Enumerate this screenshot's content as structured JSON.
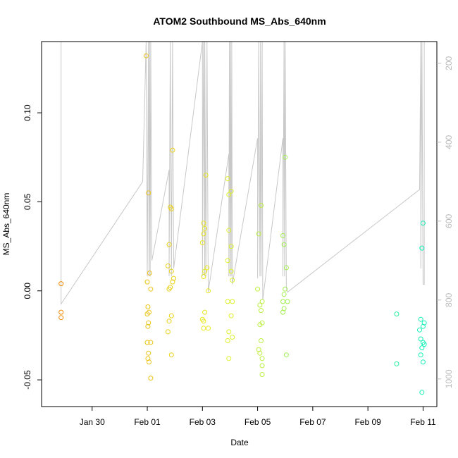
{
  "chart_data": {
    "type": "scatter",
    "title": "ATOM2 Southbound MS_Abs_640nm",
    "xlabel": "Date",
    "ylabel": "MS_Abs_640nm",
    "x_range": [
      "2017-01-28T04:00",
      "2017-02-11T12:00"
    ],
    "ylim": [
      -0.065,
      0.14
    ],
    "y_ticks": [
      -0.05,
      0.0,
      0.05,
      0.1
    ],
    "y_tick_labels": [
      "-0.05",
      "0.00",
      "0.05",
      "0.10"
    ],
    "x_ticks": [
      "2017-01-30",
      "2017-02-01",
      "2017-02-03",
      "2017-02-05",
      "2017-02-07",
      "2017-02-09",
      "2017-02-11"
    ],
    "x_tick_labels": [
      "Jan 30",
      "Feb 01",
      "Feb 03",
      "Feb 05",
      "Feb 07",
      "Feb 09",
      "Feb 11"
    ],
    "secondary_axis": {
      "side": "right",
      "color": "#bbbbbb",
      "inverted": true,
      "range": [
        145,
        1070
      ],
      "ticks": [
        200,
        400,
        600,
        800,
        1000
      ],
      "tick_labels": [
        "200",
        "400",
        "600",
        "800",
        "1000"
      ]
    },
    "points": [
      {
        "t": "2017-01-28T21:00",
        "y": 0.004
      },
      {
        "t": "2017-01-28T21:00",
        "y": -0.012
      },
      {
        "t": "2017-01-28T21:00",
        "y": -0.015
      },
      {
        "t": "2017-01-31T23:00",
        "y": 0.132
      },
      {
        "t": "2017-02-01T01:00",
        "y": 0.055
      },
      {
        "t": "2017-02-01T02:00",
        "y": 0.01
      },
      {
        "t": "2017-02-01T00:00",
        "y": 0.005
      },
      {
        "t": "2017-02-01T03:00",
        "y": 0.001
      },
      {
        "t": "2017-02-01T00:30",
        "y": -0.009
      },
      {
        "t": "2017-02-01T01:30",
        "y": -0.012
      },
      {
        "t": "2017-02-01T00:00",
        "y": -0.013
      },
      {
        "t": "2017-02-01T01:00",
        "y": -0.018
      },
      {
        "t": "2017-02-01T00:30",
        "y": -0.02
      },
      {
        "t": "2017-02-01T00:00",
        "y": -0.029
      },
      {
        "t": "2017-02-01T03:00",
        "y": -0.029
      },
      {
        "t": "2017-02-01T01:00",
        "y": -0.035
      },
      {
        "t": "2017-02-01T00:30",
        "y": -0.038
      },
      {
        "t": "2017-02-01T01:30",
        "y": -0.04
      },
      {
        "t": "2017-02-01T03:00",
        "y": -0.049
      },
      {
        "t": "2017-02-01T22:00",
        "y": 0.079
      },
      {
        "t": "2017-02-01T20:00",
        "y": 0.047
      },
      {
        "t": "2017-02-01T21:00",
        "y": 0.046
      },
      {
        "t": "2017-02-01T19:00",
        "y": 0.026
      },
      {
        "t": "2017-02-01T18:00",
        "y": 0.014
      },
      {
        "t": "2017-02-01T21:00",
        "y": 0.011
      },
      {
        "t": "2017-02-01T23:00",
        "y": 0.007
      },
      {
        "t": "2017-02-01T22:00",
        "y": 0.005
      },
      {
        "t": "2017-02-01T20:00",
        "y": 0.002
      },
      {
        "t": "2017-02-01T19:00",
        "y": 0.001
      },
      {
        "t": "2017-02-01T21:00",
        "y": -0.014
      },
      {
        "t": "2017-02-01T19:00",
        "y": -0.017
      },
      {
        "t": "2017-02-01T18:00",
        "y": -0.023
      },
      {
        "t": "2017-02-01T21:00",
        "y": -0.036
      },
      {
        "t": "2017-02-03T03:00",
        "y": 0.065
      },
      {
        "t": "2017-02-03T01:00",
        "y": 0.038
      },
      {
        "t": "2017-02-03T02:00",
        "y": 0.035
      },
      {
        "t": "2017-02-03T01:00",
        "y": 0.032
      },
      {
        "t": "2017-02-03T00:00",
        "y": 0.027
      },
      {
        "t": "2017-02-03T04:00",
        "y": 0.013
      },
      {
        "t": "2017-02-03T02:00",
        "y": 0.011
      },
      {
        "t": "2017-02-03T01:00",
        "y": 0.008
      },
      {
        "t": "2017-02-03T05:00",
        "y": 0.0
      },
      {
        "t": "2017-02-03T02:00",
        "y": -0.012
      },
      {
        "t": "2017-02-03T00:00",
        "y": -0.016
      },
      {
        "t": "2017-02-03T01:00",
        "y": -0.017
      },
      {
        "t": "2017-02-03T01:00",
        "y": -0.021
      },
      {
        "t": "2017-02-03T05:00",
        "y": -0.021
      },
      {
        "t": "2017-02-03T22:00",
        "y": 0.063
      },
      {
        "t": "2017-02-04T01:00",
        "y": 0.056
      },
      {
        "t": "2017-02-03T23:00",
        "y": 0.054
      },
      {
        "t": "2017-02-03T23:00",
        "y": 0.034
      },
      {
        "t": "2017-02-04T01:00",
        "y": 0.025
      },
      {
        "t": "2017-02-03T22:00",
        "y": 0.017
      },
      {
        "t": "2017-02-04T01:00",
        "y": 0.011
      },
      {
        "t": "2017-02-04T02:00",
        "y": 0.006
      },
      {
        "t": "2017-02-03T22:00",
        "y": -0.006
      },
      {
        "t": "2017-02-04T02:00",
        "y": -0.006
      },
      {
        "t": "2017-02-04T01:00",
        "y": -0.014
      },
      {
        "t": "2017-02-03T23:00",
        "y": -0.023
      },
      {
        "t": "2017-02-03T23:00",
        "y": -0.038
      },
      {
        "t": "2017-02-04T02:00",
        "y": -0.026
      },
      {
        "t": "2017-02-03T22:00",
        "y": -0.028
      },
      {
        "t": "2017-02-05T03:00",
        "y": 0.048
      },
      {
        "t": "2017-02-05T01:00",
        "y": 0.032
      },
      {
        "t": "2017-02-05T00:00",
        "y": 0.001
      },
      {
        "t": "2017-02-05T02:00",
        "y": -0.008
      },
      {
        "t": "2017-02-05T04:00",
        "y": -0.006
      },
      {
        "t": "2017-02-05T03:00",
        "y": -0.011
      },
      {
        "t": "2017-02-05T04:00",
        "y": -0.018
      },
      {
        "t": "2017-02-05T02:00",
        "y": -0.019
      },
      {
        "t": "2017-02-05T03:00",
        "y": -0.028
      },
      {
        "t": "2017-02-05T01:00",
        "y": -0.033
      },
      {
        "t": "2017-02-05T04:00",
        "y": -0.038
      },
      {
        "t": "2017-02-05T04:00",
        "y": -0.042
      },
      {
        "t": "2017-02-05T02:00",
        "y": -0.035
      },
      {
        "t": "2017-02-05T04:00",
        "y": -0.047
      },
      {
        "t": "2017-02-06T00:00",
        "y": 0.075
      },
      {
        "t": "2017-02-05T22:00",
        "y": 0.031
      },
      {
        "t": "2017-02-05T23:00",
        "y": 0.026
      },
      {
        "t": "2017-02-06T01:00",
        "y": 0.013
      },
      {
        "t": "2017-02-06T00:00",
        "y": 0.001
      },
      {
        "t": "2017-02-05T23:00",
        "y": -0.002
      },
      {
        "t": "2017-02-05T22:00",
        "y": -0.006
      },
      {
        "t": "2017-02-06T02:00",
        "y": -0.006
      },
      {
        "t": "2017-02-05T23:00",
        "y": -0.01
      },
      {
        "t": "2017-02-05T22:00",
        "y": -0.012
      },
      {
        "t": "2017-02-06T01:00",
        "y": -0.036
      },
      {
        "t": "2017-02-10T01:00",
        "y": -0.013
      },
      {
        "t": "2017-02-10T01:00",
        "y": -0.041
      },
      {
        "t": "2017-02-11T00:00",
        "y": 0.038
      },
      {
        "t": "2017-02-10T23:00",
        "y": 0.024
      },
      {
        "t": "2017-02-10T22:00",
        "y": -0.016
      },
      {
        "t": "2017-02-11T01:00",
        "y": -0.018
      },
      {
        "t": "2017-02-11T00:00",
        "y": -0.02
      },
      {
        "t": "2017-02-10T21:00",
        "y": -0.022
      },
      {
        "t": "2017-02-10T22:00",
        "y": -0.027
      },
      {
        "t": "2017-02-11T00:00",
        "y": -0.029
      },
      {
        "t": "2017-02-11T01:00",
        "y": -0.03
      },
      {
        "t": "2017-02-10T23:00",
        "y": -0.032
      },
      {
        "t": "2017-02-10T22:00",
        "y": -0.036
      },
      {
        "t": "2017-02-11T00:00",
        "y": -0.04
      },
      {
        "t": "2017-02-10T23:00",
        "y": -0.057
      }
    ],
    "track_line": {
      "axis": "secondary",
      "color": "#c8c8c8",
      "points": [
        {
          "t": "2017-01-28T21:00",
          "v": 145
        },
        {
          "t": "2017-01-28T21:00",
          "v": 810
        },
        {
          "t": "2017-01-31T20:00",
          "v": 500
        },
        {
          "t": "2017-01-31T23:00",
          "v": 145
        },
        {
          "t": "2017-02-01T00:00",
          "v": 740
        },
        {
          "t": "2017-02-01T01:00",
          "v": 145
        },
        {
          "t": "2017-02-01T01:30",
          "v": 740
        },
        {
          "t": "2017-02-01T02:00",
          "v": 145
        },
        {
          "t": "2017-02-01T02:30",
          "v": 740
        },
        {
          "t": "2017-02-01T03:00",
          "v": 145
        },
        {
          "t": "2017-02-01T04:00",
          "v": 700
        },
        {
          "t": "2017-02-01T19:00",
          "v": 470
        },
        {
          "t": "2017-02-01T19:00",
          "v": 740
        },
        {
          "t": "2017-02-01T20:00",
          "v": 145
        },
        {
          "t": "2017-02-01T21:00",
          "v": 740
        },
        {
          "t": "2017-02-01T22:00",
          "v": 145
        },
        {
          "t": "2017-02-01T23:00",
          "v": 720
        },
        {
          "t": "2017-02-03T00:00",
          "v": 145
        },
        {
          "t": "2017-02-03T00:00",
          "v": 740
        },
        {
          "t": "2017-02-03T01:00",
          "v": 145
        },
        {
          "t": "2017-02-03T02:00",
          "v": 740
        },
        {
          "t": "2017-02-03T02:00",
          "v": 145
        },
        {
          "t": "2017-02-03T03:00",
          "v": 740
        },
        {
          "t": "2017-02-03T04:00",
          "v": 145
        },
        {
          "t": "2017-02-03T05:00",
          "v": 780
        },
        {
          "t": "2017-02-03T23:00",
          "v": 430
        },
        {
          "t": "2017-02-03T23:00",
          "v": 740
        },
        {
          "t": "2017-02-03T23:30",
          "v": 145
        },
        {
          "t": "2017-02-04T00:00",
          "v": 740
        },
        {
          "t": "2017-02-04T00:30",
          "v": 145
        },
        {
          "t": "2017-02-04T01:00",
          "v": 740
        },
        {
          "t": "2017-02-04T01:30",
          "v": 145
        },
        {
          "t": "2017-02-04T02:00",
          "v": 760
        },
        {
          "t": "2017-02-05T00:00",
          "v": 390
        },
        {
          "t": "2017-02-05T00:00",
          "v": 745
        },
        {
          "t": "2017-02-05T01:00",
          "v": 145
        },
        {
          "t": "2017-02-05T02:00",
          "v": 740
        },
        {
          "t": "2017-02-05T02:30",
          "v": 145
        },
        {
          "t": "2017-02-05T03:00",
          "v": 740
        },
        {
          "t": "2017-02-05T04:00",
          "v": 145
        },
        {
          "t": "2017-02-05T04:30",
          "v": 800
        },
        {
          "t": "2017-02-05T22:00",
          "v": 390
        },
        {
          "t": "2017-02-05T22:00",
          "v": 740
        },
        {
          "t": "2017-02-05T23:00",
          "v": 145
        },
        {
          "t": "2017-02-05T23:30",
          "v": 740
        },
        {
          "t": "2017-02-06T00:00",
          "v": 145
        },
        {
          "t": "2017-02-06T01:00",
          "v": 770
        },
        {
          "t": "2017-02-06T02:00",
          "v": 780
        },
        {
          "t": "2017-02-10T21:00",
          "v": 520
        },
        {
          "t": "2017-02-10T22:00",
          "v": 145
        },
        {
          "t": "2017-02-10T22:00",
          "v": 720
        },
        {
          "t": "2017-02-10T23:00",
          "v": 145
        },
        {
          "t": "2017-02-11T00:00",
          "v": 760
        },
        {
          "t": "2017-02-11T01:00",
          "v": 760
        },
        {
          "t": "2017-02-11T01:00",
          "v": 145
        }
      ]
    },
    "color_scale": [
      "#f08000",
      "#e8f020",
      "#00f0c0"
    ]
  }
}
